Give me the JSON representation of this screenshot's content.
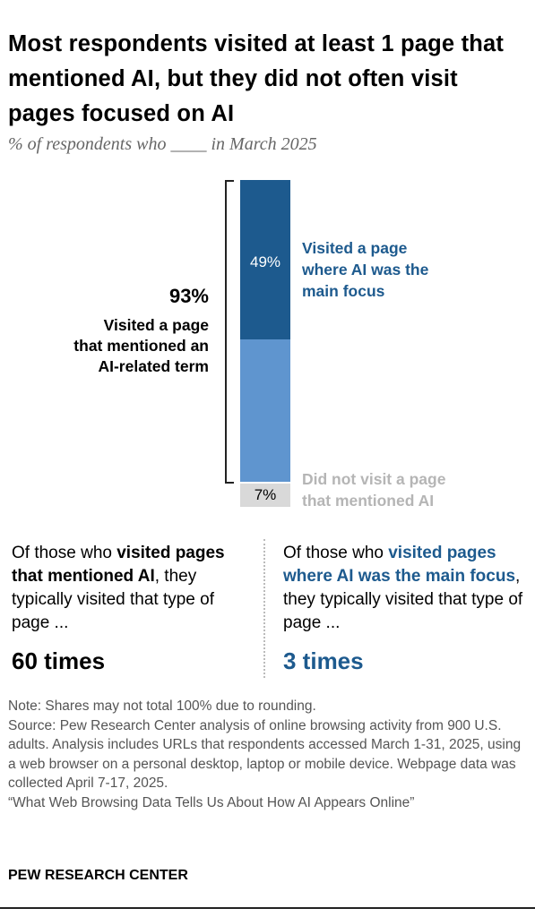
{
  "title": "Most respondents visited at least 1 page that mentioned AI, but they did not often visit pages focused on AI",
  "subtitle": "% of respondents who ____ in March 2025",
  "colors": {
    "dark_blue": "#1d5a8e",
    "light_blue": "#5f95cf",
    "gray": "#d9d9d9",
    "accent": "#1d5a8e"
  },
  "chart_data": {
    "type": "bar",
    "stacked": true,
    "segments": [
      {
        "label": "Visited a page where AI was the main focus",
        "value": 49,
        "value_label": "49%"
      },
      {
        "label": "",
        "value": 44,
        "value_label": ""
      },
      {
        "label": "Did not visit a page that mentioned AI",
        "value": 7,
        "value_label": "7%"
      }
    ],
    "bracket": {
      "value_label": "93%",
      "label": "Visited a page that mentioned an AI-related term"
    }
  },
  "labels": {
    "main_focus_line1": "Visited a page",
    "main_focus_line2": "where AI was the",
    "main_focus_line3": "main focus",
    "not_visit_line1": "Did not visit a page",
    "not_visit_line2": "that mentioned AI",
    "bracket_line1": "Visited a page",
    "bracket_line2": "that mentioned an",
    "bracket_line3": "AI-related term"
  },
  "panels": {
    "left": {
      "pre": "Of those who ",
      "bold": "visited pages that mentioned AI",
      "post": ", they typically visited that type of page ...",
      "value": "60 times"
    },
    "right": {
      "pre": "Of those who ",
      "bold": "visited pages where AI was the main focus",
      "post": ", they typically visited that type of page ...",
      "value": "3 times"
    }
  },
  "notes": {
    "note": "Note: Shares may not total 100% due to rounding.",
    "source": "Source: Pew Research Center analysis of online browsing activity from 900 U.S. adults. Analysis includes URLs that respondents accessed March 1-31, 2025, using a web browser on a personal desktop, laptop or mobile device. Webpage data was collected April 7-17, 2025.",
    "report": "“What Web Browsing Data Tells Us About How AI Appears Online”"
  },
  "brand": "PEW RESEARCH CENTER"
}
